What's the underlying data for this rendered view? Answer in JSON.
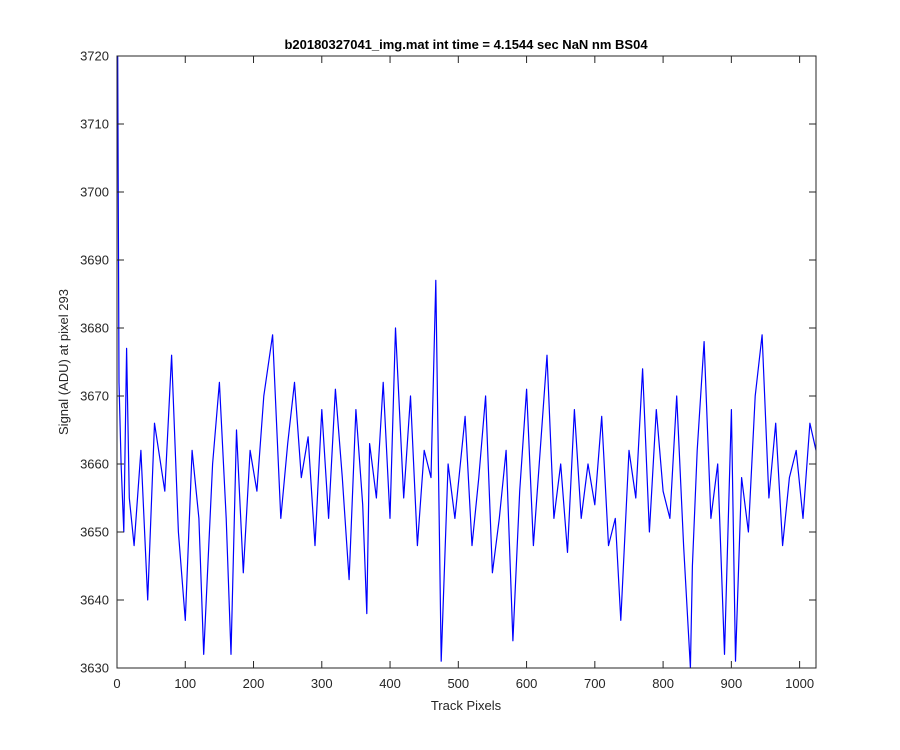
{
  "chart_data": {
    "type": "line",
    "title": "b20180327041_img.mat int time = 4.1544 sec  NaN nm BS04",
    "xlabel": "Track Pixels",
    "ylabel": "Signal (ADU) at pixel 293",
    "xlim": [
      0,
      1024
    ],
    "ylim": [
      3630,
      3720
    ],
    "xticks": [
      0,
      100,
      200,
      300,
      400,
      500,
      600,
      700,
      800,
      900,
      1000
    ],
    "yticks": [
      3630,
      3640,
      3650,
      3660,
      3670,
      3680,
      3690,
      3700,
      3710,
      3720
    ],
    "grid": false,
    "legend": "none",
    "series": [
      {
        "color": "#0000ff",
        "x": [
          1,
          3,
          6,
          10,
          14,
          18,
          25,
          35,
          45,
          55,
          70,
          80,
          90,
          100,
          110,
          120,
          127,
          140,
          150,
          160,
          167,
          175,
          185,
          195,
          205,
          215,
          228,
          240,
          250,
          260,
          270,
          280,
          290,
          300,
          310,
          320,
          330,
          340,
          350,
          360,
          366,
          370,
          380,
          390,
          400,
          408,
          420,
          430,
          440,
          450,
          460,
          467,
          475,
          485,
          495,
          510,
          520,
          530,
          540,
          550,
          560,
          570,
          580,
          590,
          600,
          610,
          620,
          630,
          640,
          650,
          660,
          670,
          680,
          690,
          700,
          710,
          720,
          730,
          738,
          750,
          760,
          770,
          780,
          790,
          800,
          810,
          820,
          830,
          840,
          843,
          850,
          860,
          870,
          880,
          890,
          900,
          906,
          915,
          925,
          935,
          945,
          955,
          965,
          975,
          985,
          995,
          1005,
          1015,
          1024
        ],
        "y": [
          3720,
          3672,
          3660,
          3650,
          3677,
          3655,
          3648,
          3662,
          3640,
          3666,
          3656,
          3676,
          3650,
          3637,
          3662,
          3652,
          3632,
          3660,
          3672,
          3652,
          3632,
          3665,
          3644,
          3662,
          3656,
          3670,
          3679,
          3652,
          3663,
          3672,
          3658,
          3664,
          3648,
          3668,
          3652,
          3671,
          3658,
          3643,
          3668,
          3654,
          3638,
          3663,
          3655,
          3672,
          3652,
          3680,
          3655,
          3670,
          3648,
          3662,
          3658,
          3687,
          3631,
          3660,
          3652,
          3667,
          3648,
          3658,
          3670,
          3644,
          3652,
          3662,
          3634,
          3656,
          3671,
          3648,
          3662,
          3676,
          3652,
          3660,
          3647,
          3668,
          3652,
          3660,
          3654,
          3667,
          3648,
          3652,
          3637,
          3662,
          3655,
          3674,
          3650,
          3668,
          3656,
          3652,
          3670,
          3648,
          3630,
          3645,
          3662,
          3678,
          3652,
          3660,
          3632,
          3668,
          3631,
          3658,
          3650,
          3670,
          3679,
          3655,
          3666,
          3648,
          3658,
          3662,
          3652,
          3666,
          3662
        ]
      }
    ]
  }
}
